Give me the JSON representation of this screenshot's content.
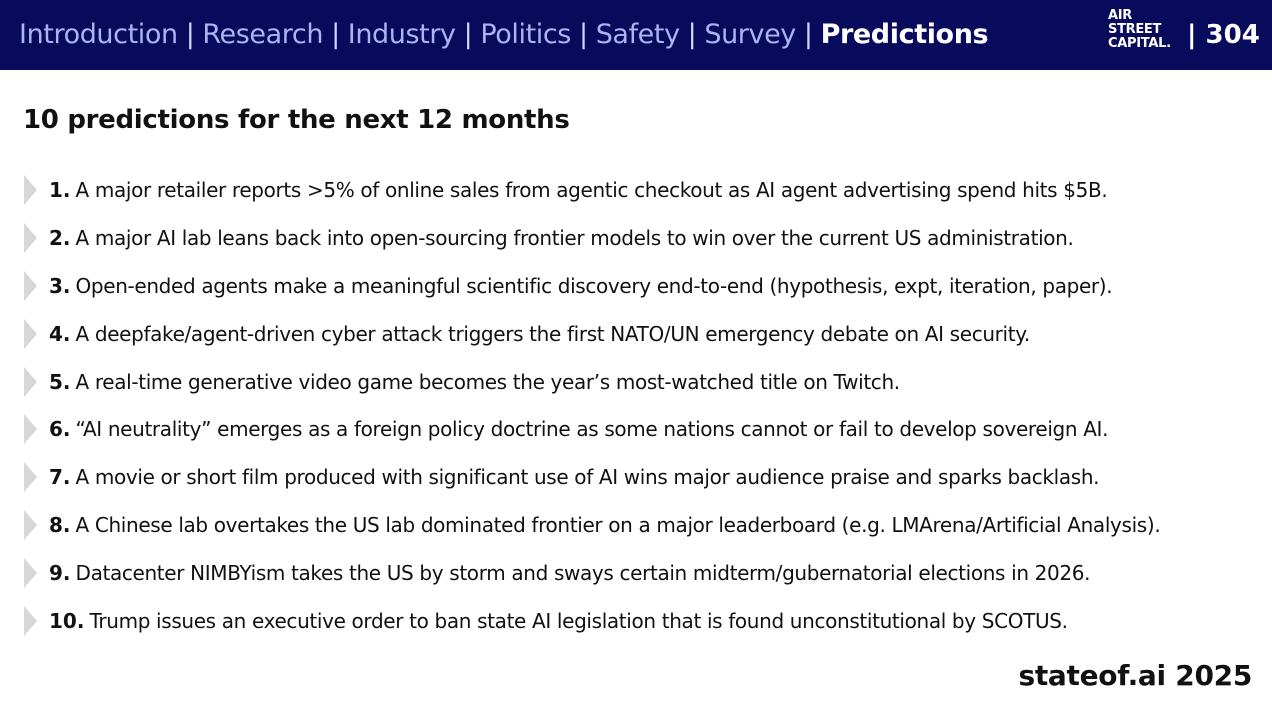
{
  "header": {
    "nav": [
      {
        "label": "Introduction",
        "active": false
      },
      {
        "label": "Research",
        "active": false
      },
      {
        "label": "Industry",
        "active": false
      },
      {
        "label": "Politics",
        "active": false
      },
      {
        "label": "Safety",
        "active": false
      },
      {
        "label": "Survey",
        "active": false
      },
      {
        "label": "Predictions",
        "active": true
      }
    ],
    "separator": "|",
    "logo_lines": [
      "AIR",
      "STREET",
      "CAPITAL."
    ],
    "page_number": "| 304"
  },
  "title": "10 predictions for the next 12 months",
  "predictions": [
    {
      "number": "1.",
      "text": "A major retailer reports >5% of online sales from agentic checkout as AI agent advertising spend hits $5B."
    },
    {
      "number": "2.",
      "text": "A major AI lab leans back into open-sourcing frontier models to win over the current US administration."
    },
    {
      "number": "3.",
      "text": "Open-ended agents make a meaningful scientific discovery end-to-end (hypothesis, expt, iteration, paper)."
    },
    {
      "number": "4.",
      "text": "A deepfake/agent-driven cyber attack triggers the first NATO/UN emergency debate on AI security."
    },
    {
      "number": "5.",
      "text": "A real-time generative video game becomes the year’s most-watched title on Twitch."
    },
    {
      "number": "6.",
      "text": "“AI neutrality” emerges as a foreign policy doctrine as some nations cannot or fail to develop sovereign AI."
    },
    {
      "number": "7.",
      "text": "A movie or short film produced with significant use of AI wins major audience praise and sparks backlash."
    },
    {
      "number": "8.",
      "text": "A Chinese lab overtakes the US lab dominated frontier on a major leaderboard (e.g. LMArena/Artificial Analysis)."
    },
    {
      "number": "9.",
      "text": "Datacenter NIMBYism takes the US by storm and sways certain midterm/gubernatorial elections in 2026."
    },
    {
      "number": "10.",
      "text": "Trump issues an executive order to ban state AI legislation that is found unconstitutional by SCOTUS."
    }
  ],
  "footer": "stateof.ai 2025",
  "colors": {
    "header_bg": "#080a5c",
    "nav_inactive": "#a9b4f0",
    "nav_active": "#ffffff",
    "bullet_arrow": "#d7d7d7"
  }
}
